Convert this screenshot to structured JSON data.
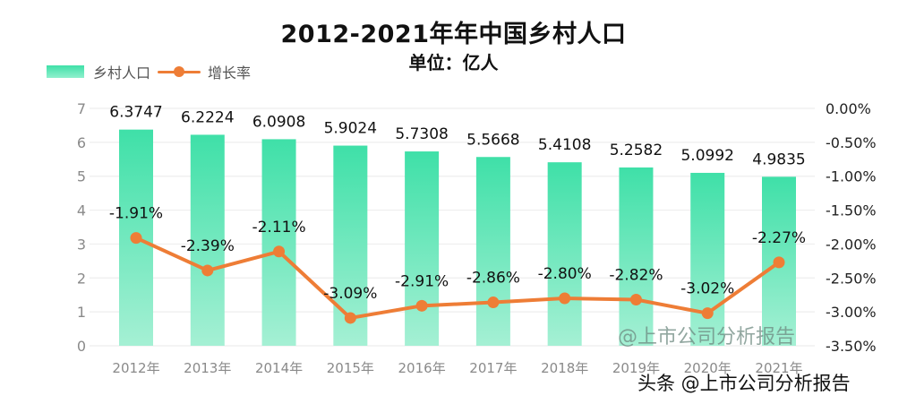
{
  "title": "2012-2021年年中国乡村人口",
  "subtitle": "单位：亿人",
  "legend": {
    "bar_label": "乡村人口",
    "line_label": "增长率"
  },
  "watermarks": {
    "in_chart": "@上市公司分析报告",
    "footer": "头条 @上市公司分析报告"
  },
  "colors": {
    "bar_top": "#3fe0a8",
    "bar_bottom": "#a5f0d4",
    "line": "#ee7d36",
    "grid": "#eeeeee",
    "axis_text": "#8a8a8a",
    "label_text": "#111111"
  },
  "chart_data": {
    "type": "bar+line",
    "title": "2012-2021年年中国乡村人口",
    "subtitle": "单位：亿人",
    "categories": [
      "2012年",
      "2013年",
      "2014年",
      "2015年",
      "2016年",
      "2017年",
      "2018年",
      "2019年",
      "2020年",
      "2021年"
    ],
    "series": [
      {
        "name": "乡村人口",
        "type": "bar",
        "axis": "left",
        "values": [
          6.3747,
          6.2224,
          6.0908,
          5.9024,
          5.7308,
          5.5668,
          5.4108,
          5.2582,
          5.0992,
          4.9835
        ],
        "labels": [
          "6.3747",
          "6.2224",
          "6.0908",
          "5.9024",
          "5.7308",
          "5.5668",
          "5.4108",
          "5.2582",
          "5.0992",
          "4.9835"
        ]
      },
      {
        "name": "增长率",
        "type": "line",
        "axis": "right",
        "values": [
          -1.91,
          -2.39,
          -2.11,
          -3.09,
          -2.91,
          -2.86,
          -2.8,
          -2.82,
          -3.02,
          -2.27
        ],
        "labels": [
          "-1.91%",
          "-2.39%",
          "-2.11%",
          "-3.09%",
          "-2.91%",
          "-2.86%",
          "-2.80%",
          "-2.82%",
          "-3.02%",
          "-2.27%"
        ]
      }
    ],
    "left_axis": {
      "ylim": [
        0,
        7
      ],
      "ticks": [
        "0",
        "1",
        "2",
        "3",
        "4",
        "5",
        "6",
        "7"
      ]
    },
    "right_axis": {
      "ylim": [
        -3.5,
        0
      ],
      "ticks": [
        "0.00%",
        "-0.50%",
        "-1.00%",
        "-1.50%",
        "-2.00%",
        "-2.50%",
        "-3.00%",
        "-3.50%"
      ]
    },
    "grid": true,
    "legend_position": "top-left"
  }
}
